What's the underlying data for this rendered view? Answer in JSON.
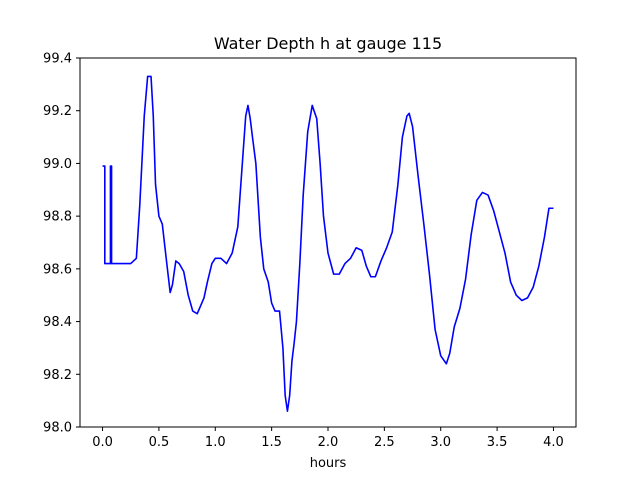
{
  "chart_data": {
    "type": "line",
    "title": "Water Depth h at gauge 115",
    "xlabel": "hours",
    "ylabel": "",
    "xlim": [
      -0.2,
      4.2
    ],
    "ylim": [
      98.0,
      99.4
    ],
    "x_ticks": [
      0.0,
      0.5,
      1.0,
      1.5,
      2.0,
      2.5,
      3.0,
      3.5,
      4.0
    ],
    "x_tick_labels": [
      "0.0",
      "0.5",
      "1.0",
      "1.5",
      "2.0",
      "2.5",
      "3.0",
      "3.5",
      "4.0"
    ],
    "y_ticks": [
      98.0,
      98.2,
      98.4,
      98.6,
      98.8,
      99.0,
      99.2,
      99.4
    ],
    "y_tick_labels": [
      "98.0",
      "98.2",
      "98.4",
      "98.6",
      "98.8",
      "99.0",
      "99.2",
      "99.4"
    ],
    "grid": false,
    "legend": false,
    "series": [
      {
        "color": "#0000ff",
        "x": [
          0.0,
          0.02,
          0.02,
          0.07,
          0.07,
          0.08,
          0.08,
          0.15,
          0.25,
          0.3,
          0.33,
          0.37,
          0.4,
          0.43,
          0.45,
          0.47,
          0.5,
          0.53,
          0.57,
          0.6,
          0.62,
          0.65,
          0.68,
          0.72,
          0.76,
          0.8,
          0.84,
          0.87,
          0.9,
          0.93,
          0.97,
          1.0,
          1.05,
          1.1,
          1.15,
          1.2,
          1.24,
          1.27,
          1.29,
          1.31,
          1.33,
          1.36,
          1.4,
          1.43,
          1.47,
          1.5,
          1.53,
          1.57,
          1.6,
          1.62,
          1.64,
          1.66,
          1.68,
          1.7,
          1.72,
          1.75,
          1.78,
          1.82,
          1.86,
          1.9,
          1.93,
          1.96,
          2.0,
          2.05,
          2.1,
          2.15,
          2.2,
          2.25,
          2.3,
          2.34,
          2.38,
          2.42,
          2.47,
          2.52,
          2.57,
          2.62,
          2.66,
          2.7,
          2.72,
          2.75,
          2.8,
          2.85,
          2.9,
          2.95,
          3.0,
          3.05,
          3.08,
          3.12,
          3.17,
          3.22,
          3.27,
          3.32,
          3.37,
          3.42,
          3.47,
          3.52,
          3.57,
          3.62,
          3.67,
          3.72,
          3.77,
          3.82,
          3.87,
          3.92,
          3.96,
          4.0
        ],
        "y": [
          98.99,
          98.99,
          98.62,
          98.62,
          98.99,
          98.99,
          98.62,
          98.62,
          98.62,
          98.64,
          98.84,
          99.18,
          99.33,
          99.33,
          99.18,
          98.92,
          98.8,
          98.77,
          98.62,
          98.51,
          98.54,
          98.63,
          98.62,
          98.59,
          98.5,
          98.44,
          98.43,
          98.46,
          98.49,
          98.55,
          98.62,
          98.64,
          98.64,
          98.62,
          98.66,
          98.76,
          99.0,
          99.18,
          99.22,
          99.17,
          99.1,
          99.0,
          98.72,
          98.6,
          98.55,
          98.47,
          98.44,
          98.44,
          98.3,
          98.12,
          98.06,
          98.12,
          98.25,
          98.32,
          98.4,
          98.62,
          98.88,
          99.12,
          99.22,
          99.17,
          99.0,
          98.8,
          98.66,
          98.58,
          98.58,
          98.62,
          98.64,
          98.68,
          98.67,
          98.61,
          98.57,
          98.57,
          98.63,
          98.68,
          98.74,
          98.92,
          99.1,
          99.18,
          99.19,
          99.14,
          98.95,
          98.77,
          98.58,
          98.37,
          98.27,
          98.24,
          98.28,
          98.38,
          98.45,
          98.56,
          98.73,
          98.86,
          98.89,
          98.88,
          98.82,
          98.74,
          98.66,
          98.55,
          98.5,
          98.48,
          98.49,
          98.53,
          98.61,
          98.72,
          98.83,
          98.83
        ]
      }
    ]
  }
}
